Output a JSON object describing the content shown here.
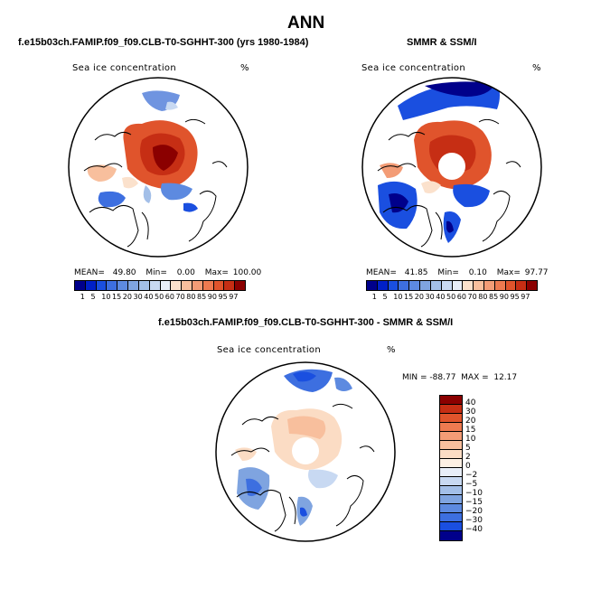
{
  "page_title": "ANN",
  "panel1": {
    "title": "f.e15b03ch.FAMIP.f09_f09.CLB-T0-SGHHT-300 (yrs 1980-1984)",
    "var": "Sea ice concentration",
    "units": "%",
    "mean_label": "MEAN=",
    "mean": "49.80",
    "min_label": "Min=",
    "min": "0.00",
    "max_label": "Max=",
    "max": "100.00"
  },
  "panel2": {
    "title": "SMMR & SSM/I",
    "var": "Sea ice concentration",
    "units": "%",
    "mean_label": "MEAN=",
    "mean": "41.85",
    "min_label": "Min=",
    "min": "0.10",
    "max_label": "Max=",
    "max": "97.77"
  },
  "panel3": {
    "title": "f.e15b03ch.FAMIP.f09_f09.CLB-T0-SGHHT-300 - SMMR & SSM/I",
    "var": "Sea ice concentration",
    "units": "%",
    "minmax": "MIN = -88.77  MAX =  12.17"
  },
  "abs_colorbar": {
    "labels": [
      "1",
      "5",
      "10",
      "15",
      "20",
      "30",
      "40",
      "50",
      "60",
      "70",
      "80",
      "85",
      "90",
      "95",
      "97"
    ],
    "colors": [
      "#00008b",
      "#0020c8",
      "#1a4fe0",
      "#3d6fe0",
      "#5d8ae0",
      "#7fa4e0",
      "#a3bfe8",
      "#c8d9f2",
      "#e8eef8",
      "#fbe1cc",
      "#f8bf9d",
      "#f39c76",
      "#ee7a50",
      "#e0542c",
      "#c62e14",
      "#8b0000"
    ]
  },
  "diff_colorbar": {
    "labels": [
      "40",
      "30",
      "20",
      "15",
      "10",
      "5",
      "2",
      "0",
      "-2",
      "-5",
      "-10",
      "-15",
      "-20",
      "-30",
      "-40"
    ],
    "colors": [
      "#8b0000",
      "#c62e14",
      "#e0542c",
      "#ee7a50",
      "#f39c76",
      "#f8bf9d",
      "#fbdcc4",
      "#fdf0e4",
      "#e8eef8",
      "#c8d9f2",
      "#a3bfe8",
      "#7fa4e0",
      "#5d8ae0",
      "#3d6fe0",
      "#1a4fe0",
      "#00008b"
    ]
  }
}
